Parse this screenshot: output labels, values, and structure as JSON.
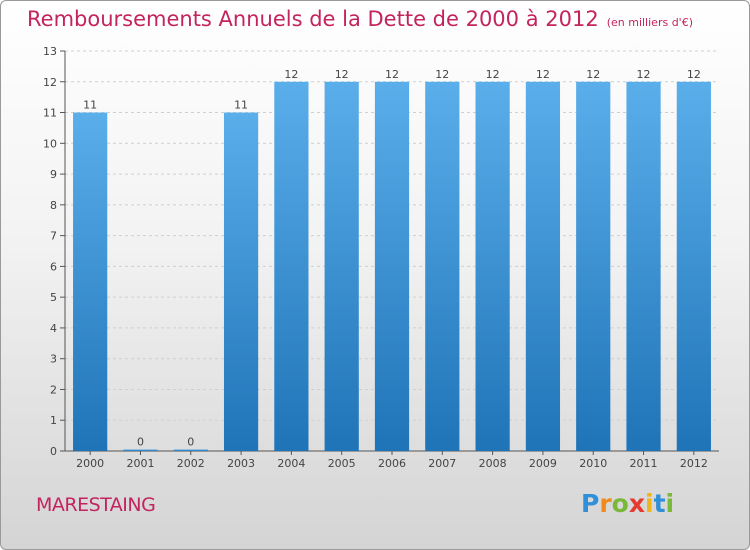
{
  "title": "Remboursements Annuels de la Dette de 2000 à 2012",
  "unit": "(en milliers d'€)",
  "commune": "MARESTAING",
  "logo": {
    "letters": [
      {
        "ch": "P",
        "color": "#2f8fd8"
      },
      {
        "ch": "r",
        "color": "#f08a1c"
      },
      {
        "ch": "o",
        "color": "#7ab83a"
      },
      {
        "ch": "x",
        "color": "#e53a2f"
      },
      {
        "ch": "i",
        "color": "#f0b51c"
      },
      {
        "ch": "t",
        "color": "#2f8fd8"
      },
      {
        "ch": "i",
        "color": "#7ab83a"
      }
    ]
  },
  "colors": {
    "title": "#c4245e",
    "bar_top": "#5aaeea",
    "bar_bottom": "#1f74b8",
    "label": "#444444"
  },
  "chart_data": {
    "type": "bar",
    "categories": [
      "2000",
      "2001",
      "2002",
      "2003",
      "2004",
      "2005",
      "2006",
      "2007",
      "2008",
      "2009",
      "2010",
      "2011",
      "2012"
    ],
    "values": [
      11,
      0,
      0,
      11,
      12,
      12,
      12,
      12,
      12,
      12,
      12,
      12,
      12
    ],
    "data_labels": [
      "11",
      "0",
      "0",
      "11",
      "12",
      "12",
      "12",
      "12",
      "12",
      "12",
      "12",
      "12",
      "12"
    ],
    "yticks": [
      0,
      1,
      2,
      3,
      4,
      5,
      6,
      7,
      8,
      9,
      10,
      11,
      12,
      13
    ],
    "ylim": [
      0,
      13
    ],
    "grid": true,
    "title": "Remboursements Annuels de la Dette de 2000 à 2012",
    "xlabel": "",
    "ylabel": ""
  }
}
